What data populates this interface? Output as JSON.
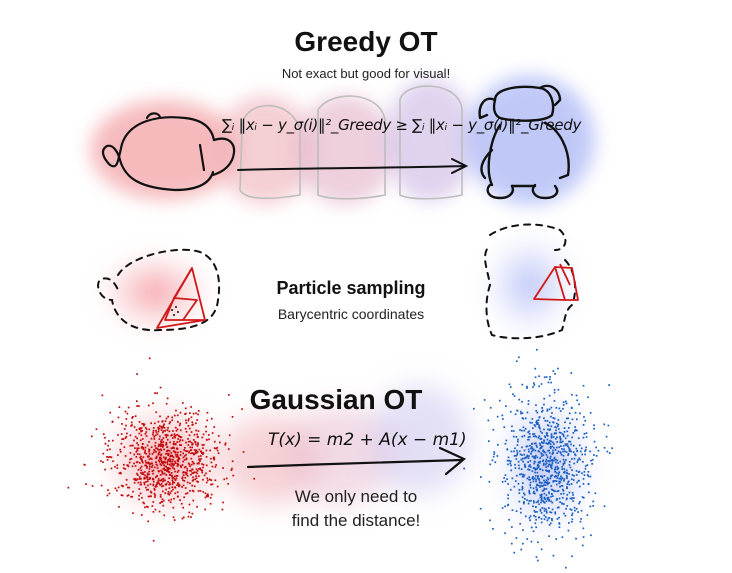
{
  "sections": [
    {
      "id": "greedy",
      "title": "Greedy OT",
      "subtitle": "Not exact but good for visual!",
      "formula": "∑ᵢ ‖xᵢ − y_σ(i)‖²_Greedy ≥ ∑ᵢ ‖xᵢ − y_σ(i)‖²_Greedy",
      "source_shape": "teapot",
      "target_shape": "teddy-bear"
    },
    {
      "id": "particle",
      "title": "Particle sampling",
      "subtitle": "Barycentric coordinates"
    },
    {
      "id": "gaussian",
      "title": "Gaussian OT",
      "formula": "T(x) = m2 + A(x − m1)",
      "caption_line1": "We only need to",
      "caption_line2": "find the distance!"
    }
  ],
  "colors": {
    "source": "#f08a8e",
    "target": "#8f9cf0",
    "source_points": "#c00a0a",
    "target_points": "#1a5fc0",
    "triangle": "#d01818",
    "ink": "#111111"
  }
}
